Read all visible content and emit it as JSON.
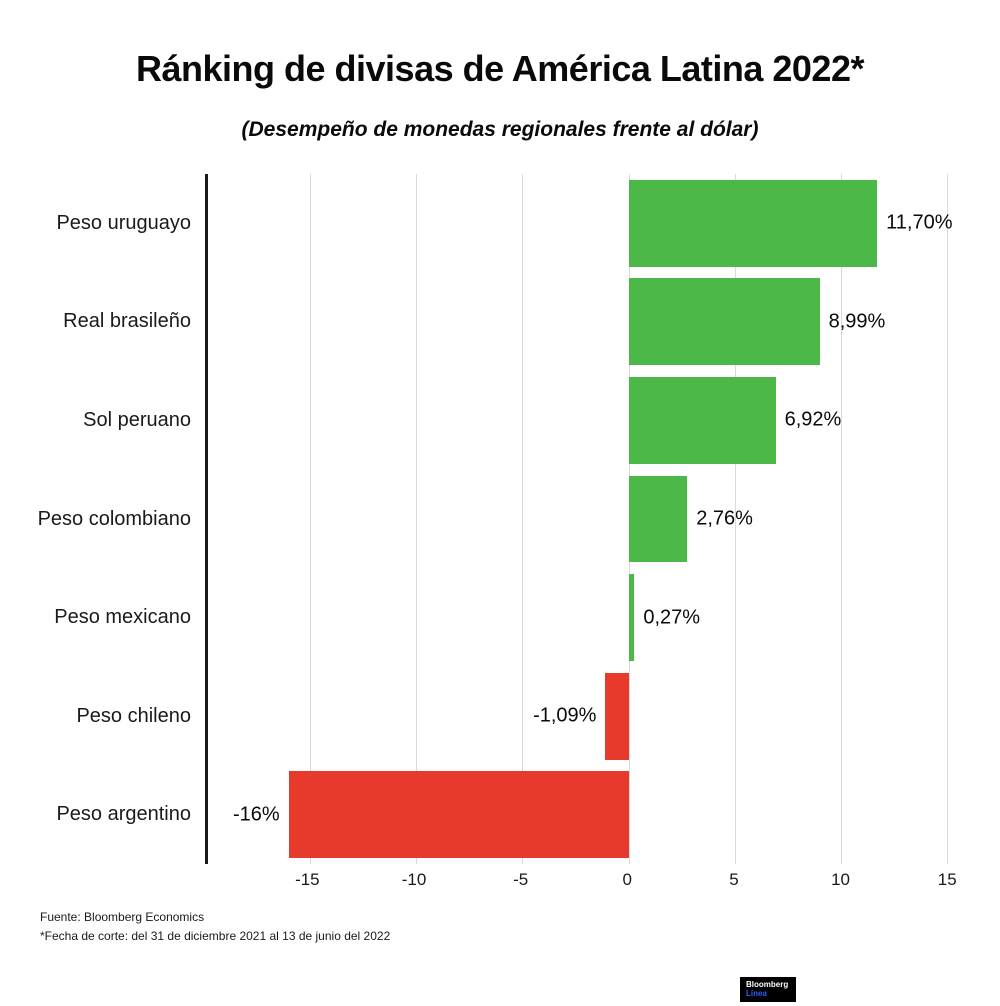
{
  "header": {
    "title": "Ránking de divisas de América Latina 2022*",
    "subtitle": "(Desempeño de monedas regionales frente al dólar)"
  },
  "chart_data": {
    "type": "bar",
    "orientation": "horizontal",
    "title": "Ránking de divisas de América Latina 2022*",
    "subtitle": "(Desempeño de monedas regionales frente al dólar)",
    "categories": [
      "Peso uruguayo",
      "Real brasileño",
      "Sol peruano",
      "Peso colombiano",
      "Peso mexicano",
      "Peso chileno",
      "Peso argentino"
    ],
    "values": [
      11.7,
      8.99,
      6.92,
      2.76,
      0.27,
      -1.09,
      -16
    ],
    "value_labels": [
      "11,70%",
      "8,99%",
      "6,92%",
      "2,76%",
      "0,27%",
      "-1,09%",
      "-16%"
    ],
    "xticks": [
      -15,
      -10,
      -5,
      0,
      5,
      10,
      15
    ],
    "xtick_labels": [
      "-15",
      "-10",
      "-5",
      "0",
      "5",
      "10",
      "15"
    ],
    "xlim": [
      -19.8,
      15.6
    ],
    "grid": true,
    "positive_color": "#4cb848",
    "negative_color": "#e8392d",
    "legend": "none"
  },
  "footer": {
    "source": "Fuente: Bloomberg Economics",
    "note": "*Fecha de corte: del 31 de diciembre 2021 al 13 de junio del 2022"
  },
  "logo": {
    "line1": "Bloomberg",
    "line2": "Línea"
  }
}
